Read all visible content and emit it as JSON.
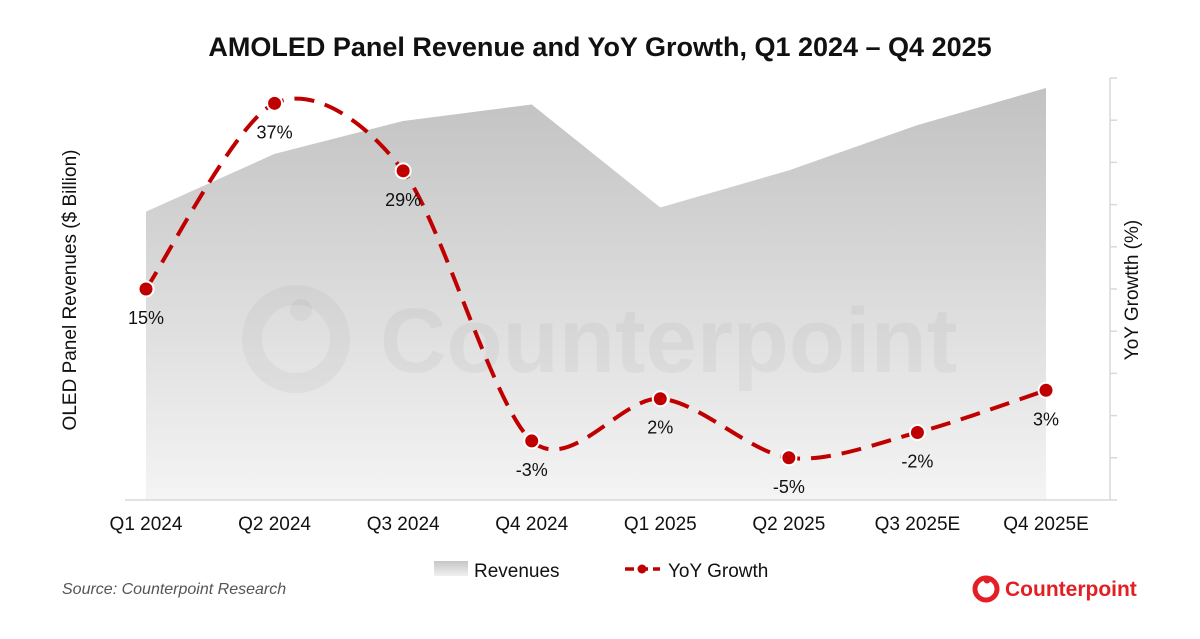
{
  "chart_data": {
    "type": "area",
    "title": "AMOLED Panel Revenue and YoY Growth, Q1 2024 – Q4 2025",
    "categories": [
      "Q1 2024",
      "Q2 2024",
      "Q3 2024",
      "Q4 2024",
      "Q1 2025",
      "Q2 2025",
      "Q3 2025E",
      "Q4 2025E"
    ],
    "ylabel": "OLED Panel Revenues ($ Billion)",
    "y2label": "YoY Growtth (%)",
    "ylim": [
      0,
      10
    ],
    "y2lim": [
      -10,
      40
    ],
    "series": [
      {
        "name": "Revenues",
        "type": "area",
        "axis": "left",
        "color": "#cfcfcf",
        "values": [
          7.0,
          8.4,
          9.2,
          9.6,
          7.1,
          8.0,
          9.1,
          10.0
        ]
      },
      {
        "name": "YoY Growth",
        "type": "line",
        "axis": "right",
        "color": "#c00000",
        "values": [
          15,
          37,
          29,
          -3,
          2,
          -5,
          -2,
          3
        ],
        "labels": [
          "15%",
          "37%",
          "29%",
          "-3%",
          "2%",
          "-5%",
          "-2%",
          "3%"
        ]
      }
    ],
    "legend": {
      "position": "bottom",
      "entries": [
        "Revenues",
        "YoY Growth"
      ]
    },
    "grid": false
  },
  "source": "Source: Counterpoint Research",
  "brand": {
    "name": "Counterpoint",
    "color": "#e31e24"
  },
  "watermark": "Counterpoint"
}
